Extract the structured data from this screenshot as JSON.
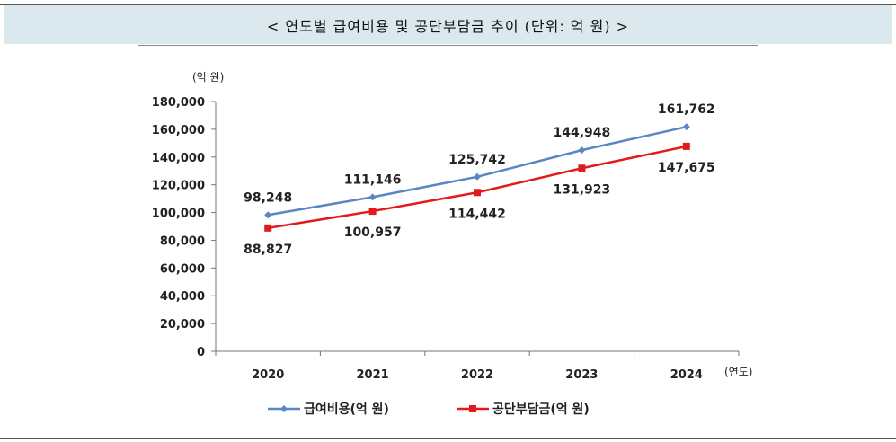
{
  "caption": "< 연도별 급여비용 및 공단부담금 추이 (단위: 억 원) >",
  "chart_data": {
    "type": "line",
    "title": "",
    "ylabel": "(억 원)",
    "xlabel": "(연도)",
    "categories": [
      "2020",
      "2021",
      "2022",
      "2023",
      "2024"
    ],
    "ylim": [
      0,
      180000
    ],
    "yticks": [
      0,
      20000,
      40000,
      60000,
      80000,
      100000,
      120000,
      140000,
      160000,
      180000
    ],
    "ytick_labels": [
      "0",
      "20,000",
      "40,000",
      "60,000",
      "80,000",
      "100,000",
      "120,000",
      "140,000",
      "160,000",
      "180,000"
    ],
    "grid": false,
    "legend_position": "bottom",
    "series": [
      {
        "name": "급여비용(억 원)",
        "color": "#5b86c4",
        "marker": "diamond",
        "values": [
          98248,
          111146,
          125742,
          144948,
          161762
        ],
        "labels": [
          "98,248",
          "111,146",
          "125,742",
          "144,948",
          "161,762"
        ]
      },
      {
        "name": "공단부담금(억 원)",
        "color": "#e31a1c",
        "marker": "square",
        "values": [
          88827,
          100957,
          114442,
          131923,
          147675
        ],
        "labels": [
          "88,827",
          "100,957",
          "114,442",
          "131,923",
          "147,675"
        ]
      }
    ]
  }
}
